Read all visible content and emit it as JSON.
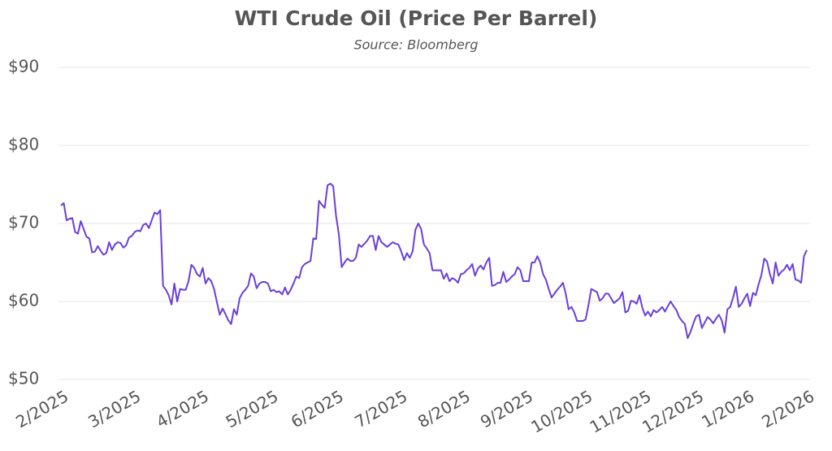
{
  "chart_data": {
    "type": "line",
    "title": "WTI Crude Oil (Price Per Barrel)",
    "subtitle": "Source: Bloomberg",
    "series": [
      {
        "name": "WTI Crude Oil",
        "color": "#6a3fd9",
        "values": [
          72.3,
          72.6,
          70.4,
          70.6,
          70.7,
          68.9,
          68.7,
          70.3,
          69.3,
          68.3,
          68.1,
          66.3,
          66.4,
          67.1,
          66.5,
          66.0,
          66.2,
          67.6,
          66.6,
          67.3,
          67.6,
          67.5,
          66.9,
          67.2,
          68.2,
          68.4,
          68.9,
          69.1,
          69.0,
          69.8,
          70.0,
          69.4,
          70.4,
          71.4,
          71.2,
          71.7,
          62.0,
          61.5,
          60.8,
          59.6,
          62.3,
          60.0,
          61.6,
          61.5,
          61.5,
          62.6,
          64.7,
          64.3,
          63.5,
          63.2,
          64.3,
          62.3,
          63.0,
          62.6,
          61.6,
          59.9,
          58.3,
          59.1,
          58.4,
          57.6,
          57.1,
          59.0,
          58.3,
          60.4,
          61.1,
          61.5,
          62.0,
          63.6,
          63.2,
          61.7,
          62.3,
          62.5,
          62.5,
          62.3,
          61.3,
          61.5,
          61.2,
          61.3,
          60.9,
          61.8,
          60.9,
          61.5,
          62.3,
          63.2,
          63.0,
          64.4,
          64.8,
          65.0,
          65.2,
          68.1,
          68.0,
          72.9,
          72.4,
          72.0,
          74.9,
          75.1,
          74.8,
          71.0,
          68.6,
          64.4,
          65.0,
          65.5,
          65.2,
          65.2,
          65.6,
          67.3,
          67.0,
          67.4,
          67.8,
          68.4,
          68.4,
          66.6,
          68.4,
          67.6,
          67.3,
          67.0,
          67.3,
          67.6,
          67.4,
          67.3,
          66.4,
          65.3,
          66.2,
          65.6,
          66.4,
          69.2,
          70.0,
          69.3,
          67.3,
          66.8,
          66.2,
          64.0,
          64.0,
          64.0,
          64.0,
          62.9,
          63.6,
          62.6,
          63.0,
          62.8,
          62.4,
          63.5,
          63.6,
          64.0,
          64.3,
          64.8,
          63.3,
          64.2,
          64.6,
          64.1,
          65.0,
          65.6,
          62.0,
          62.1,
          62.4,
          62.4,
          63.8,
          62.5,
          62.8,
          63.2,
          63.5,
          64.4,
          64.0,
          62.6,
          62.6,
          62.6,
          65.0,
          65.0,
          65.8,
          65.0,
          63.5,
          62.8,
          61.6,
          60.5,
          61.0,
          61.5,
          61.9,
          62.4,
          61.0,
          59.0,
          59.3,
          58.6,
          57.5,
          57.5,
          57.5,
          57.7,
          59.5,
          61.6,
          61.4,
          61.2,
          60.1,
          60.4,
          61.0,
          61.0,
          60.4,
          59.8,
          60.1,
          60.4,
          61.2,
          58.6,
          58.8,
          60.1,
          60.0,
          59.7,
          60.8,
          59.2,
          58.2,
          58.7,
          58.1,
          58.9,
          58.6,
          58.9,
          59.3,
          58.7,
          59.4,
          60.0,
          59.4,
          58.9,
          58.0,
          57.5,
          57.1,
          55.3,
          56.1,
          57.2,
          58.1,
          58.3,
          56.6,
          57.3,
          58.0,
          57.7,
          57.2,
          57.8,
          58.3,
          57.6,
          56.0,
          59.0,
          59.3,
          60.5,
          61.9,
          59.3,
          59.7,
          60.4,
          61.0,
          59.4,
          61.1,
          60.8,
          62.2,
          63.4,
          65.5,
          65.1,
          63.5,
          62.3,
          65.0,
          63.3,
          63.8,
          64.1,
          64.7,
          64.0,
          64.8,
          62.8,
          62.7,
          62.4,
          65.8,
          66.6
        ]
      }
    ],
    "xlim": [
      0,
      263
    ],
    "xticks": [
      {
        "value": 0,
        "label": "2/2025"
      },
      {
        "value": 25.5,
        "label": "3/2025"
      },
      {
        "value": 49.5,
        "label": "4/2025"
      },
      {
        "value": 74,
        "label": "5/2025"
      },
      {
        "value": 97,
        "label": "6/2025"
      },
      {
        "value": 119.5,
        "label": "7/2025"
      },
      {
        "value": 141.7,
        "label": "8/2025"
      },
      {
        "value": 163.8,
        "label": "9/2025"
      },
      {
        "value": 184.8,
        "label": "10/2025"
      },
      {
        "value": 205.5,
        "label": "11/2025"
      },
      {
        "value": 224,
        "label": "12/2025"
      },
      {
        "value": 241.8,
        "label": "1/2026"
      },
      {
        "value": 263,
        "label": "2/2026"
      }
    ],
    "ylim": [
      50,
      90
    ],
    "yticks": [
      {
        "value": 50,
        "label": "$50"
      },
      {
        "value": 60,
        "label": "$60"
      },
      {
        "value": 70,
        "label": "$70"
      },
      {
        "value": 80,
        "label": "$80"
      },
      {
        "value": 90,
        "label": "$90"
      }
    ],
    "grid": true
  }
}
